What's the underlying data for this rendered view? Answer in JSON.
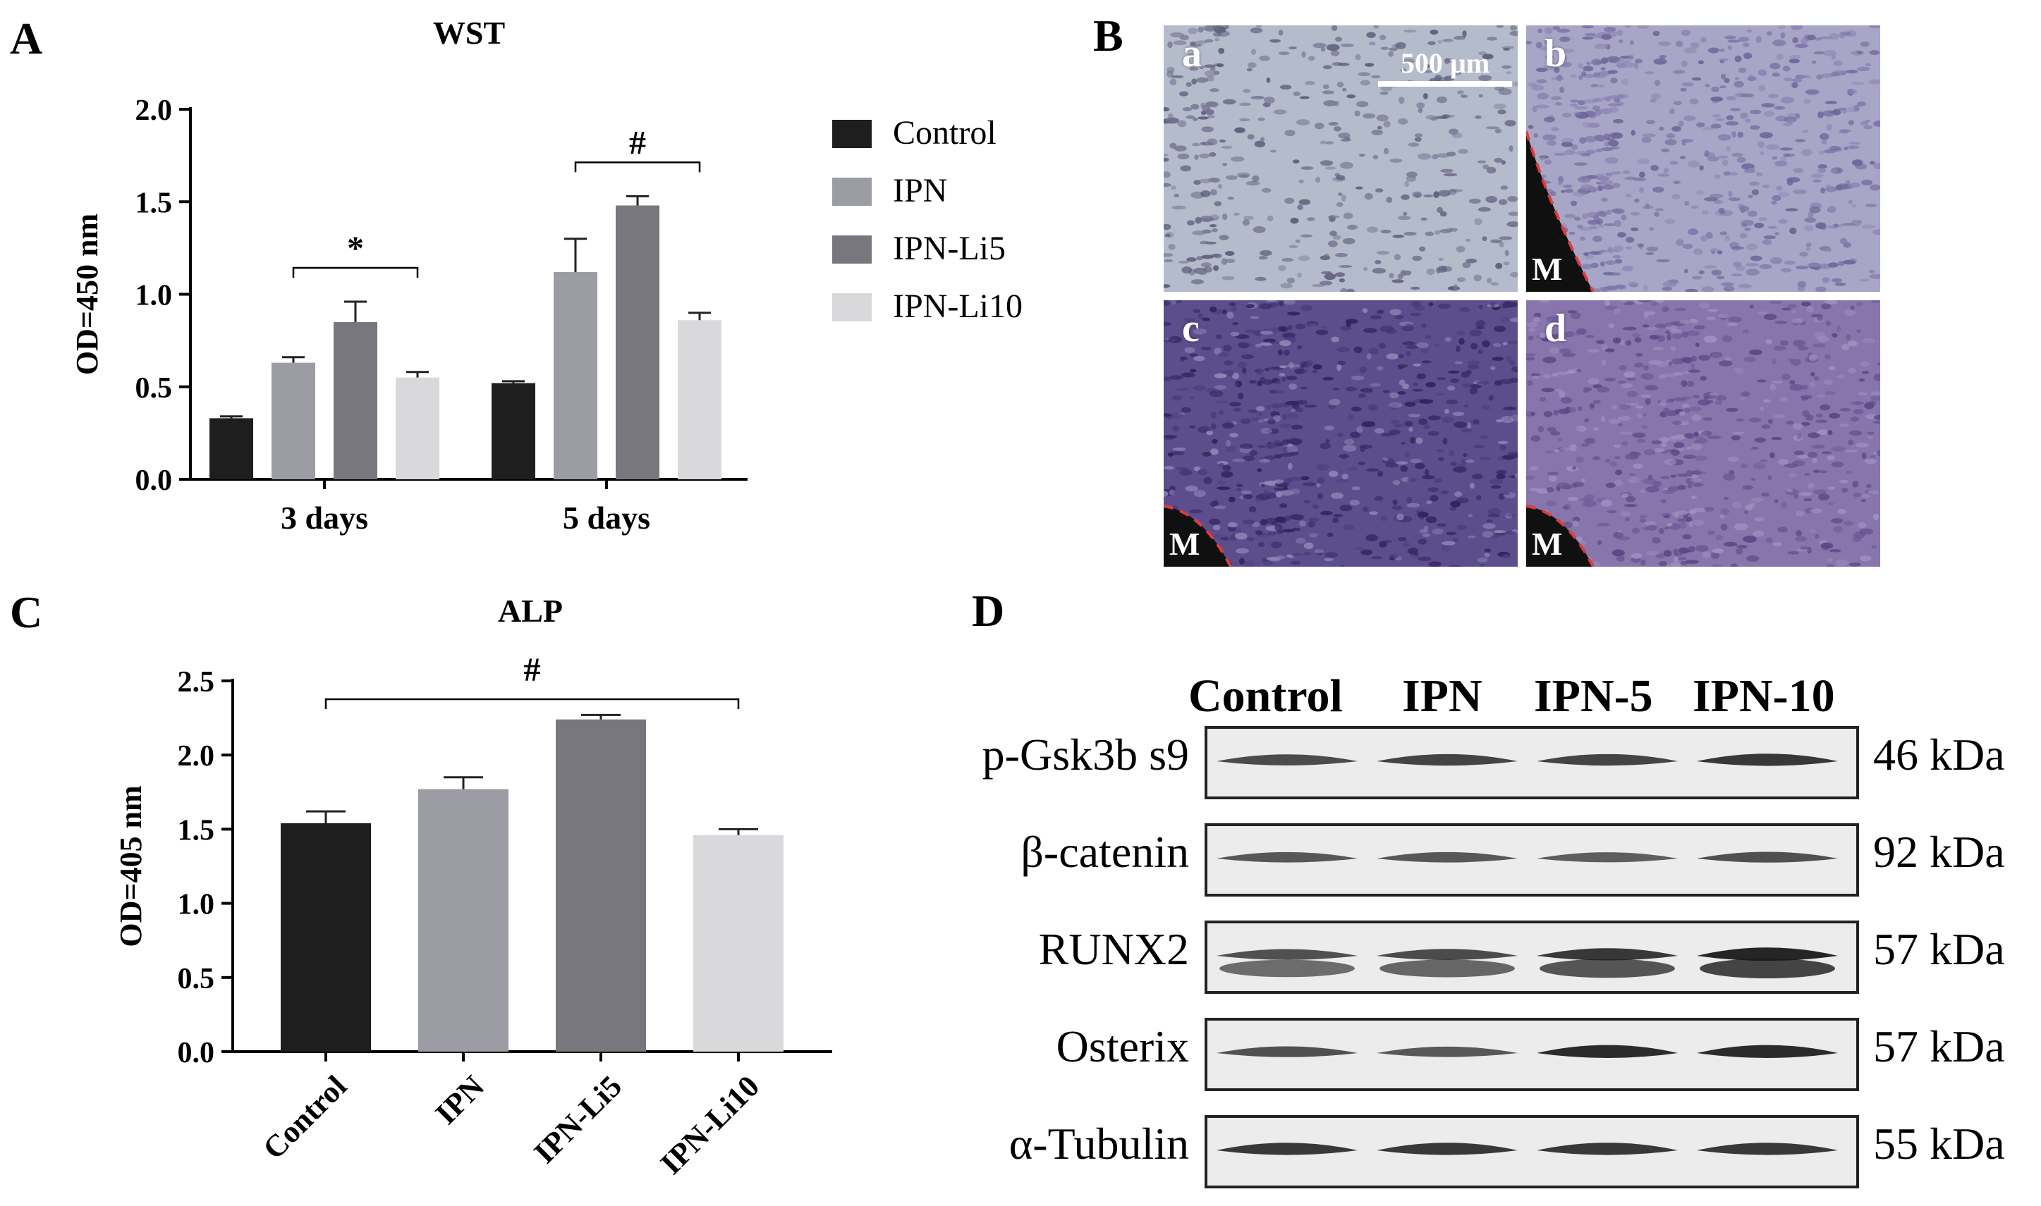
{
  "panels": {
    "A": {
      "letter": "A",
      "chart_data": {
        "type": "bar",
        "title": "WST",
        "ylabel": "OD=450 nm",
        "xlabel": "",
        "ylim": [
          0,
          2.0
        ],
        "yticks": [
          "0.0",
          "0.5",
          "1.0",
          "1.5",
          "2.0"
        ],
        "categories": [
          "3 days",
          "5 days"
        ],
        "series": [
          {
            "name": "Control",
            "color": "#1e1e1e",
            "values": [
              0.33,
              0.52
            ],
            "errors": [
              0.01,
              0.01
            ]
          },
          {
            "name": "IPN",
            "color": "#9c9ca4",
            "values": [
              0.63,
              1.12
            ],
            "errors": [
              0.03,
              0.18
            ]
          },
          {
            "name": "IPN-Li5",
            "color": "#77777d",
            "values": [
              0.85,
              1.48
            ],
            "errors": [
              0.11,
              0.05
            ]
          },
          {
            "name": "IPN-Li10",
            "color": "#d9d9dc",
            "values": [
              0.55,
              0.86
            ],
            "errors": [
              0.03,
              0.04
            ]
          }
        ],
        "annotations": [
          {
            "text": "*",
            "group": "3 days",
            "from_series": 1,
            "to_series": 3
          },
          {
            "text": "#",
            "group": "5 days",
            "from_series": 1,
            "to_series": 3
          }
        ],
        "legend": "right"
      }
    },
    "B": {
      "letter": "B",
      "scale_bar": "500 µm",
      "images": [
        {
          "label": "a",
          "marker": ""
        },
        {
          "label": "b",
          "marker": "M"
        },
        {
          "label": "c",
          "marker": "M"
        },
        {
          "label": "d",
          "marker": "M"
        }
      ]
    },
    "C": {
      "letter": "C",
      "chart_data": {
        "type": "bar",
        "title": "ALP",
        "ylabel": "OD=405 nm",
        "xlabel": "",
        "ylim": [
          0,
          2.5
        ],
        "yticks": [
          "0.0",
          "0.5",
          "1.0",
          "1.5",
          "2.0",
          "2.5"
        ],
        "categories": [
          "Control",
          "IPN",
          "IPN-Li5",
          "IPN-Li10"
        ],
        "values": [
          1.54,
          1.77,
          2.24,
          1.46
        ],
        "errors": [
          0.08,
          0.08,
          0.03,
          0.04
        ],
        "colors": [
          "#1e1e1e",
          "#9c9ca4",
          "#77777d",
          "#d9d9dc"
        ],
        "annotations": [
          {
            "text": "#",
            "from": 0,
            "to": 3
          }
        ]
      }
    },
    "D": {
      "letter": "D",
      "columns": [
        "Control",
        "IPN",
        "IPN-5",
        "IPN-10"
      ],
      "rows": [
        {
          "protein": "p-Gsk3b s9",
          "kda": "46 kDa",
          "intensity": [
            0.7,
            0.75,
            0.75,
            0.85
          ],
          "double": false
        },
        {
          "protein": "β-catenin",
          "kda": "92 kDa",
          "intensity": [
            0.6,
            0.6,
            0.55,
            0.65
          ],
          "double": false
        },
        {
          "protein": "RUNX2",
          "kda": "57 kDa",
          "intensity": [
            0.65,
            0.7,
            0.85,
            1.0
          ],
          "double": true
        },
        {
          "protein": "Osterix",
          "kda": "57 kDa",
          "intensity": [
            0.65,
            0.6,
            0.95,
            0.95
          ],
          "double": false
        },
        {
          "protein": "α-Tubulin",
          "kda": "55 kDa",
          "intensity": [
            0.85,
            0.85,
            0.85,
            0.85
          ],
          "double": false
        }
      ]
    }
  }
}
